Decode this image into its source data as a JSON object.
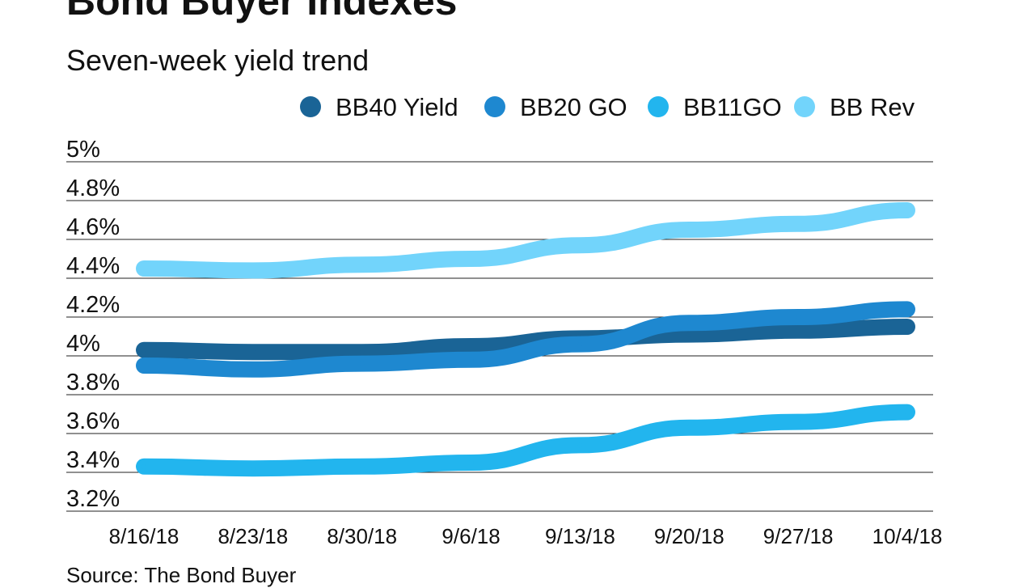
{
  "chart_data": {
    "type": "line",
    "title": "Bond Buyer Indexes",
    "subtitle": "Seven-week yield trend",
    "source": "Source: The Bond Buyer",
    "xlabel": "",
    "ylabel": "",
    "categories": [
      "8/16/18",
      "8/23/18",
      "8/30/18",
      "9/6/18",
      "9/13/18",
      "9/20/18",
      "9/27/18",
      "10/4/18"
    ],
    "ylim": [
      3.2,
      5.0
    ],
    "yticks": [
      {
        "value": 5.0,
        "label": "5%"
      },
      {
        "value": 4.8,
        "label": "4.8%"
      },
      {
        "value": 4.6,
        "label": "4.6%"
      },
      {
        "value": 4.4,
        "label": "4.4%"
      },
      {
        "value": 4.2,
        "label": "4.2%"
      },
      {
        "value": 4.0,
        "label": "4%"
      },
      {
        "value": 3.8,
        "label": "3.8%"
      },
      {
        "value": 3.6,
        "label": "3.6%"
      },
      {
        "value": 3.4,
        "label": "3.4%"
      },
      {
        "value": 3.2,
        "label": "3.2%"
      }
    ],
    "grid": true,
    "legend_position": "top",
    "series": [
      {
        "name": "BB40 Yield",
        "color": "#1a6496",
        "values": [
          4.03,
          4.02,
          4.02,
          4.05,
          4.09,
          4.11,
          4.13,
          4.15
        ]
      },
      {
        "name": "BB20 GO",
        "color": "#1e88d0",
        "values": [
          3.95,
          3.93,
          3.96,
          3.98,
          4.06,
          4.17,
          4.2,
          4.24
        ]
      },
      {
        "name": "BB11GO",
        "color": "#22b5ee",
        "values": [
          3.43,
          3.42,
          3.43,
          3.45,
          3.54,
          3.63,
          3.66,
          3.71
        ]
      },
      {
        "name": "BB Rev",
        "color": "#72d4fb",
        "values": [
          4.45,
          4.44,
          4.47,
          4.5,
          4.57,
          4.65,
          4.68,
          4.75
        ]
      }
    ]
  }
}
